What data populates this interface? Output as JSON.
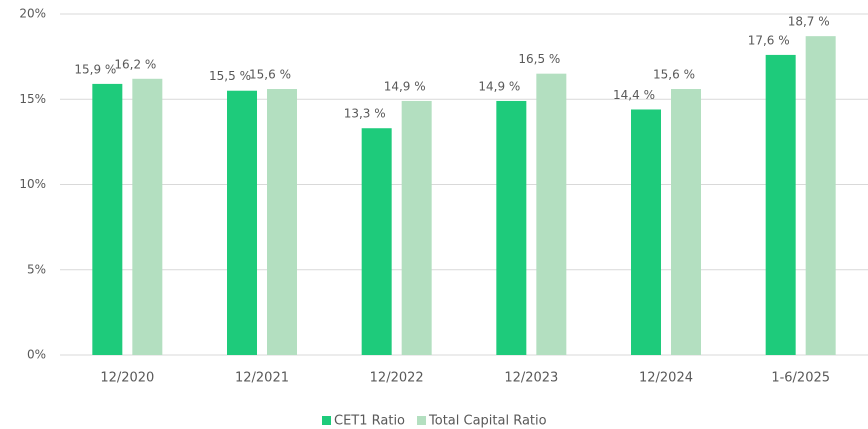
{
  "chart_data": {
    "type": "bar",
    "categories": [
      "12/2020",
      "12/2021",
      "12/2022",
      "12/2023",
      "12/2024",
      "1-6/2025"
    ],
    "series": [
      {
        "name": "CET1 Ratio",
        "color": "#1ecb7b",
        "values": [
          15.9,
          15.5,
          13.3,
          14.9,
          14.4,
          17.6
        ],
        "value_labels": [
          "15,9 %",
          "15,5 %",
          "13,3 %",
          "14,9 %",
          "14,4 %",
          "17,6 %"
        ]
      },
      {
        "name": "Total Capital Ratio",
        "color": "#b3dfc0",
        "values": [
          16.2,
          15.6,
          14.9,
          16.5,
          15.6,
          18.7
        ],
        "value_labels": [
          "16,2 %",
          "15,6 %",
          "14,9 %",
          "16,5 %",
          "15,6 %",
          "18,7 %"
        ]
      }
    ],
    "ylim": [
      0,
      20
    ],
    "yticks": [
      {
        "value": 0,
        "label": "0%"
      },
      {
        "value": 5,
        "label": "5%"
      },
      {
        "value": 10,
        "label": "10%"
      },
      {
        "value": 15,
        "label": "15%"
      },
      {
        "value": 20,
        "label": "20%"
      }
    ],
    "grid": true,
    "legend": "bottom"
  }
}
